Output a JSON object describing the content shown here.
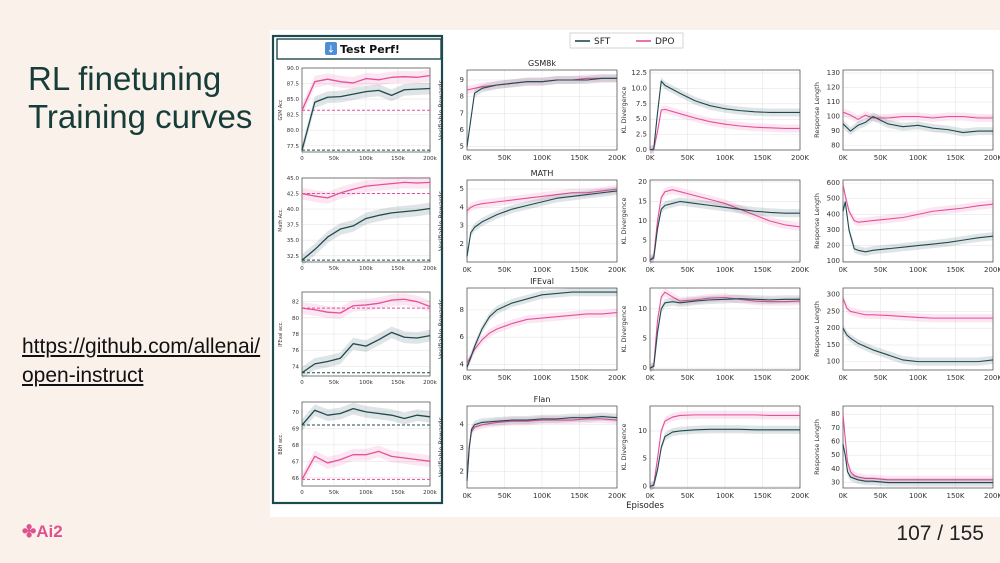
{
  "slide": {
    "title_line1": "RL finetuning",
    "title_line2": "Training curves",
    "link": "https://github.com/allenai/open-instruct",
    "logo": "Ai2",
    "page": "107 / 155"
  },
  "colors": {
    "sft": "#1e4a4d",
    "dpo": "#e5509a",
    "panel_border": "#1e4a4d",
    "grid": "#e6e6e6"
  },
  "test_panel": {
    "header": "Test Perf!",
    "icon": "down-arrow-icon"
  },
  "chart_data": [
    {
      "type": "line",
      "panel": "test",
      "ylabel": "GSM Acc",
      "ylim": [
        76.5,
        90
      ],
      "yticks": [
        "77.5",
        "80.0",
        "82.5",
        "85.0",
        "87.5",
        "90.0"
      ],
      "x": [
        0,
        20,
        40,
        60,
        80,
        100,
        120,
        140,
        160,
        180,
        200
      ],
      "series": [
        {
          "name": "SFT",
          "values": [
            76.8,
            84.5,
            85.3,
            85.4,
            85.8,
            86.2,
            86.4,
            85.6,
            86.5,
            86.6,
            86.7
          ]
        },
        {
          "name": "DPO",
          "values": [
            83.2,
            87.8,
            88.2,
            87.8,
            87.6,
            88.3,
            88.1,
            88.5,
            88.6,
            88.5,
            88.8
          ]
        }
      ],
      "baselines": {
        "SFT": 76.8,
        "DPO": 83.2
      }
    },
    {
      "type": "line",
      "panel": "test",
      "ylabel": "Math Acc.",
      "ylim": [
        31.5,
        45
      ],
      "yticks": [
        "32.5",
        "35.0",
        "37.5",
        "40.0",
        "42.5",
        "45.0"
      ],
      "x": [
        0,
        20,
        40,
        60,
        80,
        100,
        120,
        140,
        160,
        180,
        200
      ],
      "series": [
        {
          "name": "SFT",
          "values": [
            31.8,
            33.5,
            35.5,
            36.8,
            37.3,
            38.5,
            39.0,
            39.4,
            39.6,
            39.8,
            40.1
          ]
        },
        {
          "name": "DPO",
          "values": [
            42.5,
            42.1,
            41.8,
            42.6,
            43.2,
            43.7,
            43.9,
            44.1,
            44.3,
            44.2,
            44.3
          ]
        }
      ],
      "baselines": {
        "SFT": 31.8,
        "DPO": 42.5
      }
    },
    {
      "type": "line",
      "panel": "test",
      "ylabel": "IFEval acc.",
      "ylim": [
        72.8,
        83.2
      ],
      "yticks": [
        "74",
        "76",
        "78",
        "80",
        "82"
      ],
      "x": [
        0,
        20,
        40,
        60,
        80,
        100,
        120,
        140,
        160,
        180,
        200
      ],
      "series": [
        {
          "name": "SFT",
          "values": [
            73.2,
            74.3,
            74.6,
            75.0,
            76.8,
            76.5,
            77.3,
            78.2,
            77.6,
            77.5,
            77.8
          ]
        },
        {
          "name": "DPO",
          "values": [
            81.2,
            81.0,
            80.7,
            80.6,
            81.5,
            81.6,
            81.8,
            82.2,
            82.3,
            82.0,
            81.4
          ]
        }
      ],
      "baselines": {
        "SFT": 73.2,
        "DPO": 81.2
      }
    },
    {
      "type": "line",
      "panel": "test",
      "ylabel": "BBH acc.",
      "ylim": [
        65.5,
        70.6
      ],
      "yticks": [
        "66",
        "67",
        "68",
        "69",
        "70"
      ],
      "x": [
        0,
        20,
        40,
        60,
        80,
        100,
        120,
        140,
        160,
        180,
        200
      ],
      "series": [
        {
          "name": "SFT",
          "values": [
            69.2,
            70.1,
            69.8,
            69.9,
            70.2,
            70.0,
            69.9,
            69.8,
            69.6,
            69.8,
            69.7
          ]
        },
        {
          "name": "DPO",
          "values": [
            65.9,
            67.3,
            66.9,
            67.1,
            67.4,
            67.4,
            67.6,
            67.3,
            67.2,
            67.1,
            67.0
          ]
        }
      ],
      "baselines": {
        "SFT": 69.2,
        "DPO": 65.9
      }
    },
    {
      "type": "line",
      "title": "GSM8k",
      "ylabel": "Verifiable Rewards",
      "ylim": [
        4.8,
        9.6
      ],
      "yticks": [
        "5",
        "6",
        "7",
        "8",
        "9"
      ],
      "x": [
        0,
        10,
        20,
        40,
        60,
        80,
        100,
        120,
        140,
        160,
        180,
        200
      ],
      "series": [
        {
          "name": "SFT",
          "values": [
            5.0,
            8.2,
            8.5,
            8.7,
            8.8,
            8.9,
            8.9,
            9.0,
            9.0,
            9.0,
            9.1,
            9.1
          ]
        },
        {
          "name": "DPO",
          "values": [
            8.4,
            8.5,
            8.6,
            8.7,
            8.8,
            8.9,
            8.9,
            9.0,
            9.0,
            9.1,
            9.1,
            9.1
          ]
        }
      ]
    },
    {
      "type": "line",
      "ylabel": "KL Divergence",
      "ylim": [
        0,
        13
      ],
      "yticks": [
        "0.0",
        "2.5",
        "5.0",
        "7.5",
        "10.0",
        "12.5"
      ],
      "x": [
        0,
        5,
        10,
        15,
        20,
        40,
        60,
        80,
        100,
        120,
        140,
        160,
        180,
        200
      ],
      "series": [
        {
          "name": "SFT",
          "values": [
            0,
            0.2,
            6,
            11.2,
            10.5,
            9.2,
            8.0,
            7.2,
            6.7,
            6.4,
            6.2,
            6.1,
            6.1,
            6.1
          ]
        },
        {
          "name": "DPO",
          "values": [
            0,
            0.1,
            3,
            6.5,
            6.6,
            5.9,
            5.2,
            4.6,
            4.2,
            3.9,
            3.7,
            3.6,
            3.5,
            3.5
          ]
        }
      ]
    },
    {
      "type": "line",
      "ylabel": "Response Length",
      "ylim": [
        77,
        132
      ],
      "yticks": [
        "80",
        "90",
        "100",
        "110",
        "120",
        "130"
      ],
      "x": [
        0,
        10,
        20,
        30,
        40,
        60,
        80,
        100,
        120,
        140,
        160,
        180,
        200
      ],
      "series": [
        {
          "name": "SFT",
          "values": [
            95,
            90,
            94,
            96,
            100,
            95,
            93,
            94,
            92,
            91,
            89,
            90,
            90
          ]
        },
        {
          "name": "DPO",
          "values": [
            103,
            101,
            98,
            101,
            99,
            99,
            100,
            100,
            99,
            100,
            100,
            99,
            99
          ]
        }
      ]
    },
    {
      "type": "line",
      "title": "MATH",
      "ylabel": "Verifiable Rewards",
      "ylim": [
        1,
        5.5
      ],
      "yticks": [
        "2",
        "3",
        "4",
        "5"
      ],
      "x": [
        0,
        5,
        10,
        20,
        40,
        60,
        80,
        100,
        120,
        140,
        160,
        180,
        200
      ],
      "series": [
        {
          "name": "SFT",
          "values": [
            1.3,
            2.6,
            2.9,
            3.2,
            3.6,
            3.9,
            4.1,
            4.3,
            4.5,
            4.6,
            4.7,
            4.8,
            4.9
          ]
        },
        {
          "name": "DPO",
          "values": [
            3.8,
            4.0,
            4.1,
            4.2,
            4.3,
            4.4,
            4.5,
            4.6,
            4.7,
            4.8,
            4.8,
            4.9,
            5.0
          ]
        }
      ]
    },
    {
      "type": "line",
      "ylabel": "KL Divergence",
      "ylim": [
        -0.5,
        20.5
      ],
      "yticks": [
        "0",
        "5",
        "10",
        "15",
        "20"
      ],
      "x": [
        0,
        5,
        10,
        15,
        20,
        30,
        40,
        60,
        80,
        100,
        120,
        140,
        160,
        180,
        200
      ],
      "series": [
        {
          "name": "SFT",
          "values": [
            0,
            0.5,
            8,
            13,
            14,
            14.5,
            15,
            14.5,
            14,
            13.5,
            13,
            12.5,
            12.2,
            12,
            12
          ]
        },
        {
          "name": "DPO",
          "values": [
            0,
            1,
            10,
            16,
            17.5,
            18,
            17.5,
            16.5,
            15.5,
            14.5,
            13,
            11.5,
            10,
            9,
            8.5
          ]
        }
      ]
    },
    {
      "type": "line",
      "ylabel": "Response Length",
      "ylim": [
        95,
        620
      ],
      "yticks": [
        "100",
        "200",
        "300",
        "400",
        "500",
        "600"
      ],
      "x": [
        0,
        3,
        8,
        15,
        20,
        30,
        40,
        60,
        80,
        100,
        120,
        140,
        160,
        180,
        200
      ],
      "series": [
        {
          "name": "SFT",
          "values": [
            420,
            480,
            300,
            180,
            170,
            160,
            170,
            180,
            190,
            200,
            210,
            220,
            235,
            250,
            260
          ]
        },
        {
          "name": "DPO",
          "values": [
            590,
            520,
            420,
            360,
            350,
            355,
            360,
            370,
            380,
            400,
            420,
            430,
            440,
            455,
            465
          ]
        }
      ]
    },
    {
      "type": "line",
      "title": "IFEval",
      "ylabel": "Verifiable Rewards",
      "ylim": [
        3.6,
        9.6
      ],
      "yticks": [
        "4",
        "6",
        "8"
      ],
      "x": [
        0,
        5,
        10,
        20,
        30,
        40,
        60,
        80,
        100,
        120,
        140,
        160,
        180,
        200
      ],
      "series": [
        {
          "name": "SFT",
          "values": [
            3.8,
            4.5,
            5.3,
            6.6,
            7.5,
            8.0,
            8.5,
            8.8,
            9.1,
            9.2,
            9.3,
            9.3,
            9.3,
            9.3
          ]
        },
        {
          "name": "DPO",
          "values": [
            4.1,
            4.6,
            5.1,
            5.8,
            6.3,
            6.6,
            7.0,
            7.3,
            7.4,
            7.5,
            7.6,
            7.7,
            7.7,
            7.8
          ]
        }
      ]
    },
    {
      "type": "line",
      "ylabel": "KL Divergence",
      "ylim": [
        -0.3,
        13.5
      ],
      "yticks": [
        "0",
        "5",
        "10"
      ],
      "x": [
        0,
        5,
        10,
        15,
        20,
        30,
        40,
        60,
        80,
        100,
        120,
        140,
        160,
        180,
        200
      ],
      "series": [
        {
          "name": "SFT",
          "values": [
            0,
            0.3,
            6,
            10,
            11,
            11.2,
            11,
            11.3,
            11.5,
            11.6,
            11.7,
            11.6,
            11.5,
            11.6,
            11.6
          ]
        },
        {
          "name": "DPO",
          "values": [
            0,
            0.5,
            8,
            12,
            12.8,
            12,
            11.3,
            11.5,
            11.8,
            11.9,
            11.6,
            11.3,
            11.2,
            11.2,
            11.3
          ]
        }
      ]
    },
    {
      "type": "line",
      "ylabel": "Response Length",
      "ylim": [
        75,
        320
      ],
      "yticks": [
        "100",
        "150",
        "200",
        "250",
        "300"
      ],
      "x": [
        0,
        5,
        10,
        20,
        30,
        40,
        60,
        80,
        100,
        120,
        140,
        160,
        180,
        200
      ],
      "series": [
        {
          "name": "SFT",
          "values": [
            200,
            180,
            170,
            155,
            145,
            135,
            120,
            105,
            100,
            100,
            100,
            100,
            100,
            105
          ]
        },
        {
          "name": "DPO",
          "values": [
            290,
            260,
            250,
            245,
            240,
            240,
            238,
            235,
            232,
            230,
            230,
            230,
            230,
            230
          ]
        }
      ]
    },
    {
      "type": "line",
      "title": "Flan",
      "ylabel": "Verifiable Rewards",
      "ylim": [
        1.3,
        4.8
      ],
      "yticks": [
        "2",
        "3",
        "4"
      ],
      "x": [
        0,
        3,
        6,
        10,
        20,
        40,
        60,
        80,
        100,
        120,
        140,
        160,
        180,
        200
      ],
      "series": [
        {
          "name": "SFT",
          "values": [
            1.6,
            3.0,
            3.8,
            4.0,
            4.1,
            4.15,
            4.2,
            4.2,
            4.25,
            4.25,
            4.3,
            4.3,
            4.35,
            4.3
          ]
        },
        {
          "name": "DPO",
          "values": [
            1.7,
            3.1,
            3.7,
            3.9,
            4.0,
            4.1,
            4.15,
            4.15,
            4.2,
            4.2,
            4.2,
            4.25,
            4.25,
            4.2
          ]
        }
      ]
    },
    {
      "type": "line",
      "ylabel": "KL Divergence",
      "ylim": [
        -0.3,
        14.5
      ],
      "yticks": [
        "0",
        "5",
        "10"
      ],
      "x": [
        0,
        5,
        10,
        15,
        20,
        30,
        40,
        60,
        80,
        100,
        120,
        140,
        160,
        180,
        200
      ],
      "series": [
        {
          "name": "SFT",
          "values": [
            0,
            0.2,
            3,
            7,
            9,
            9.8,
            10,
            10.2,
            10.3,
            10.3,
            10.3,
            10.2,
            10.2,
            10.2,
            10.2
          ]
        },
        {
          "name": "DPO",
          "values": [
            0,
            0.3,
            5,
            10,
            11.8,
            12.5,
            12.8,
            12.9,
            12.9,
            12.9,
            12.9,
            12.9,
            12.8,
            12.8,
            12.8
          ]
        }
      ]
    },
    {
      "type": "line",
      "ylabel": "Response Length",
      "ylim": [
        26,
        86
      ],
      "yticks": [
        "30",
        "40",
        "50",
        "60",
        "70",
        "80"
      ],
      "x": [
        0,
        3,
        6,
        10,
        15,
        20,
        30,
        40,
        60,
        80,
        100,
        120,
        140,
        160,
        180,
        200
      ],
      "series": [
        {
          "name": "SFT",
          "values": [
            58,
            50,
            38,
            34,
            33,
            32,
            31,
            31,
            30,
            30,
            30,
            30,
            30,
            30,
            30,
            30
          ]
        },
        {
          "name": "DPO",
          "values": [
            80,
            62,
            45,
            38,
            35,
            34,
            33,
            33,
            32,
            32,
            32,
            32,
            32,
            32,
            32,
            32
          ]
        }
      ]
    }
  ],
  "main_axes": {
    "xticks": [
      "0K",
      "50K",
      "100K",
      "150K",
      "200K"
    ],
    "xlabel": "Episodes",
    "legend": [
      "SFT",
      "DPO"
    ],
    "legend_position": "top-center"
  },
  "test_axes": {
    "xticks": [
      "0",
      "50k",
      "100k",
      "150k",
      "200k"
    ]
  }
}
